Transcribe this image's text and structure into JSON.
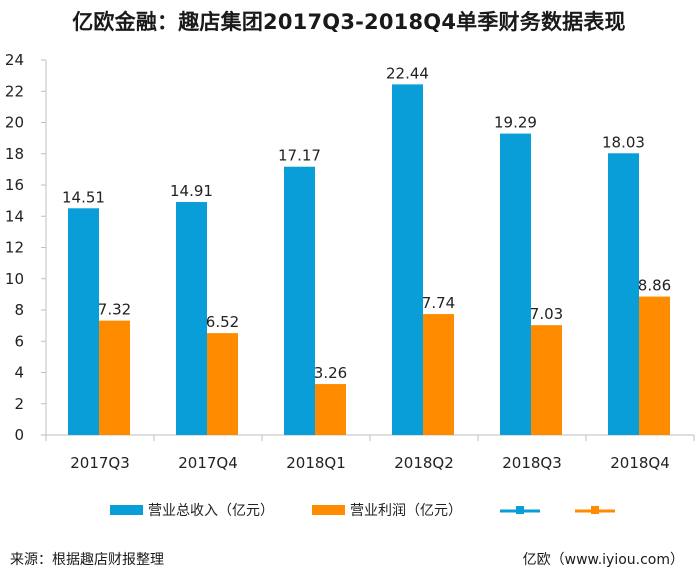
{
  "title": "亿欧金融：趣店集团2017Q3-2018Q4单季财务数据表现",
  "footer": {
    "source": "来源：根据趣店财报整理",
    "brand": "亿欧（www.iyiou.com）"
  },
  "chart_data": {
    "type": "bar",
    "categories": [
      "2017Q3",
      "2017Q4",
      "2018Q1",
      "2018Q2",
      "2018Q3",
      "2018Q4"
    ],
    "series": [
      {
        "name": "营业总收入（亿元）",
        "color": "#0A9ED9",
        "values": [
          14.51,
          14.91,
          17.17,
          22.44,
          19.29,
          18.03
        ]
      },
      {
        "name": "营业利润（亿元）",
        "color": "#FF8C00",
        "values": [
          7.32,
          6.52,
          3.26,
          7.74,
          7.03,
          8.86
        ]
      }
    ],
    "extra_legend": [
      {
        "color": "#0A9ED9",
        "shape": "line-marker"
      },
      {
        "color": "#FF8C00",
        "shape": "line-marker"
      }
    ],
    "ylim": [
      0,
      24
    ],
    "yticks": [
      0,
      2,
      4,
      6,
      8,
      10,
      12,
      14,
      16,
      18,
      20,
      22,
      24
    ],
    "grid": false,
    "legend_position": "bottom"
  }
}
